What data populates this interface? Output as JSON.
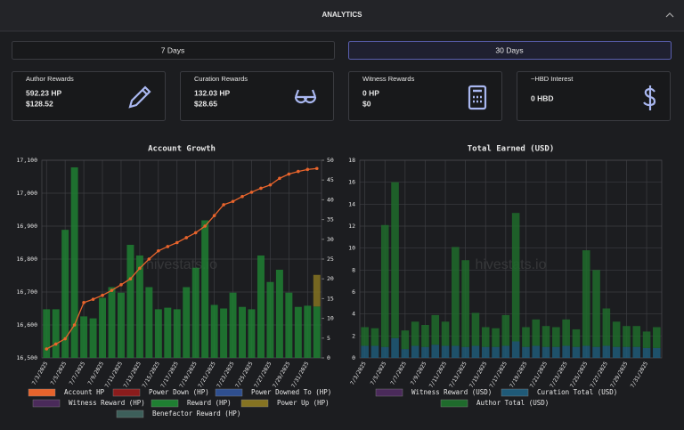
{
  "header": {
    "title": "ANALYTICS"
  },
  "buttons": [
    "7 Days",
    "30 Days"
  ],
  "active_button": 1,
  "cards": [
    {
      "title": "Author Rewards",
      "lines": [
        "592.23 HP",
        "$128.52"
      ]
    },
    {
      "title": "Curation Rewards",
      "lines": [
        "132.03 HP",
        "$28.65"
      ]
    },
    {
      "title": "Witness Rewards",
      "lines": [
        "0 HP",
        "$0"
      ]
    },
    {
      "title": "~HBD Interest",
      "lines": [
        "0 HBD"
      ]
    }
  ],
  "chart_data": [
    {
      "type": "bar",
      "title": "Account Growth",
      "watermark": "hivestats.io",
      "grid": true,
      "categories": [
        "7/3/2025",
        null,
        "7/5/2025",
        null,
        "7/7/2025",
        null,
        "7/9/2025",
        null,
        "7/11/2025",
        null,
        "7/13/2025",
        null,
        "7/15/2025",
        null,
        "7/17/2025",
        null,
        "7/19/2025",
        null,
        "7/21/2025",
        null,
        "7/23/2025",
        null,
        "7/25/2025",
        null,
        "7/27/2025",
        null,
        "7/29/2025",
        null,
        "7/31/2025",
        null
      ],
      "ylim": [
        16500,
        17100
      ],
      "yticks": [
        {
          "value": 16500,
          "label": "16,500"
        },
        {
          "value": 16600,
          "label": "16,600"
        },
        {
          "value": 16700,
          "label": "16,700"
        },
        {
          "value": 16800,
          "label": "16,800"
        },
        {
          "value": 16900,
          "label": "16,900"
        },
        {
          "value": 17000,
          "label": "17,000"
        },
        {
          "value": 17100,
          "label": "17,100"
        }
      ],
      "y2lim": [
        0,
        50
      ],
      "y2ticks": [
        0,
        5,
        10,
        15,
        20,
        25,
        30,
        35,
        40,
        45,
        50
      ],
      "series": [
        {
          "name": "Account HP",
          "type": "line",
          "axis": "y",
          "color": "#e8642c",
          "values": [
            16527,
            16542,
            16558,
            16600,
            16668,
            16678,
            16690,
            16705,
            16722,
            16740,
            16772,
            16800,
            16825,
            16838,
            16850,
            16865,
            16880,
            16900,
            16932,
            16965,
            16975,
            16990,
            17003,
            17015,
            17025,
            17045,
            17058,
            17066,
            17072,
            17075
          ]
        },
        {
          "name": "Power Down (HP)",
          "axis": "y2",
          "color": "#8b1c1c",
          "values": [
            0,
            0,
            0,
            0,
            0,
            0,
            0,
            0,
            0,
            0,
            0,
            0,
            0,
            0,
            0,
            0,
            0,
            0,
            0,
            0,
            0,
            0,
            0,
            0,
            0,
            0,
            0,
            0,
            0,
            0
          ]
        },
        {
          "name": "Power Downed To (HP)",
          "axis": "y2",
          "color": "#2f4f8f",
          "values": [
            0,
            0,
            0,
            0,
            0,
            0,
            0,
            0,
            0,
            0,
            0,
            0,
            0,
            0,
            0,
            0,
            0,
            0,
            0,
            0,
            0,
            0,
            0,
            0,
            0,
            0,
            0,
            0,
            0,
            0
          ]
        },
        {
          "name": "Witness Reward (HP)",
          "axis": "y2",
          "color": "#4a2a5a",
          "values": [
            0,
            0,
            0,
            0,
            0,
            0,
            0,
            0,
            0,
            0,
            0,
            0,
            0,
            0,
            0,
            0,
            0,
            0,
            0,
            0,
            0,
            0,
            0,
            0,
            0,
            0,
            0,
            0,
            0,
            0
          ]
        },
        {
          "name": "Reward (HP)",
          "axis": "y2",
          "color": "#1f7f32",
          "values": [
            12.3,
            12.3,
            32.4,
            48.2,
            10.5,
            10,
            15.2,
            17.9,
            16.5,
            28.6,
            25.9,
            17.9,
            12.3,
            12.7,
            12.3,
            17.9,
            22.8,
            34.8,
            13.4,
            12.5,
            16.5,
            12.9,
            12.3,
            25.9,
            19.2,
            22.3,
            16.5,
            12.9,
            13.2,
            13
          ]
        },
        {
          "name": "Power Up (HP)",
          "axis": "y2",
          "color": "#857322",
          "values": [
            0,
            0,
            0,
            0,
            0,
            0,
            0,
            0,
            0,
            0,
            0,
            0,
            0,
            0,
            0,
            0,
            0,
            0,
            0,
            0,
            0,
            0,
            0,
            0,
            0,
            0,
            0,
            0,
            0,
            8
          ]
        },
        {
          "name": "Benefactor Reward (HP)",
          "axis": "y2",
          "color": "#3d5f5a",
          "values": [
            0,
            0,
            0,
            0,
            0,
            0,
            0,
            0,
            0,
            0,
            0,
            0,
            0,
            0,
            0,
            0,
            0,
            0,
            0,
            0,
            0,
            0,
            0,
            0,
            0,
            0,
            0,
            0,
            0,
            0
          ]
        }
      ]
    },
    {
      "type": "bar",
      "title": "Total Earned (USD)",
      "watermark": "hivestats.io",
      "grid": true,
      "categories": [
        "7/3/2025",
        null,
        "7/5/2025",
        null,
        "7/7/2025",
        null,
        "7/9/2025",
        null,
        "7/11/2025",
        null,
        "7/13/2025",
        null,
        "7/15/2025",
        null,
        "7/17/2025",
        null,
        "7/19/2025",
        null,
        "7/21/2025",
        null,
        "7/23/2025",
        null,
        "7/25/2025",
        null,
        "7/27/2025",
        null,
        "7/29/2025",
        null,
        "7/31/2025",
        null
      ],
      "ylim": [
        0,
        18
      ],
      "yticks": [
        0,
        2,
        4,
        6,
        8,
        10,
        12,
        14,
        16,
        18
      ],
      "series": [
        {
          "name": "Witness Reward (USD)",
          "color": "#4a2a5a",
          "values": [
            0,
            0,
            0,
            0,
            0,
            0,
            0,
            0,
            0,
            0,
            0,
            0,
            0,
            0,
            0,
            0,
            0,
            0,
            0,
            0,
            0,
            0,
            0,
            0,
            0,
            0,
            0,
            0,
            0,
            0
          ]
        },
        {
          "name": "Curation Total (USD)",
          "color": "#1f5a78",
          "values": [
            1.1,
            1.1,
            1,
            1.8,
            0.8,
            1.1,
            1,
            1.2,
            1.1,
            1.1,
            1,
            1.1,
            1,
            1,
            1.1,
            1.5,
            1,
            1.1,
            1,
            1,
            1.1,
            1,
            1.1,
            1,
            1.1,
            1,
            1,
            1,
            0.9,
            0.9
          ]
        },
        {
          "name": "Author Total (USD)",
          "color": "#1f6b2c",
          "values": [
            1.7,
            1.6,
            11.1,
            14.2,
            1.7,
            2.2,
            2,
            2.7,
            2.2,
            9,
            7.9,
            3,
            1.8,
            1.7,
            2.8,
            11.7,
            1.8,
            2.4,
            1.9,
            1.8,
            2.4,
            1.6,
            8.7,
            7,
            3.4,
            2.3,
            1.9,
            1.9,
            1.5,
            1.9
          ]
        }
      ]
    }
  ]
}
